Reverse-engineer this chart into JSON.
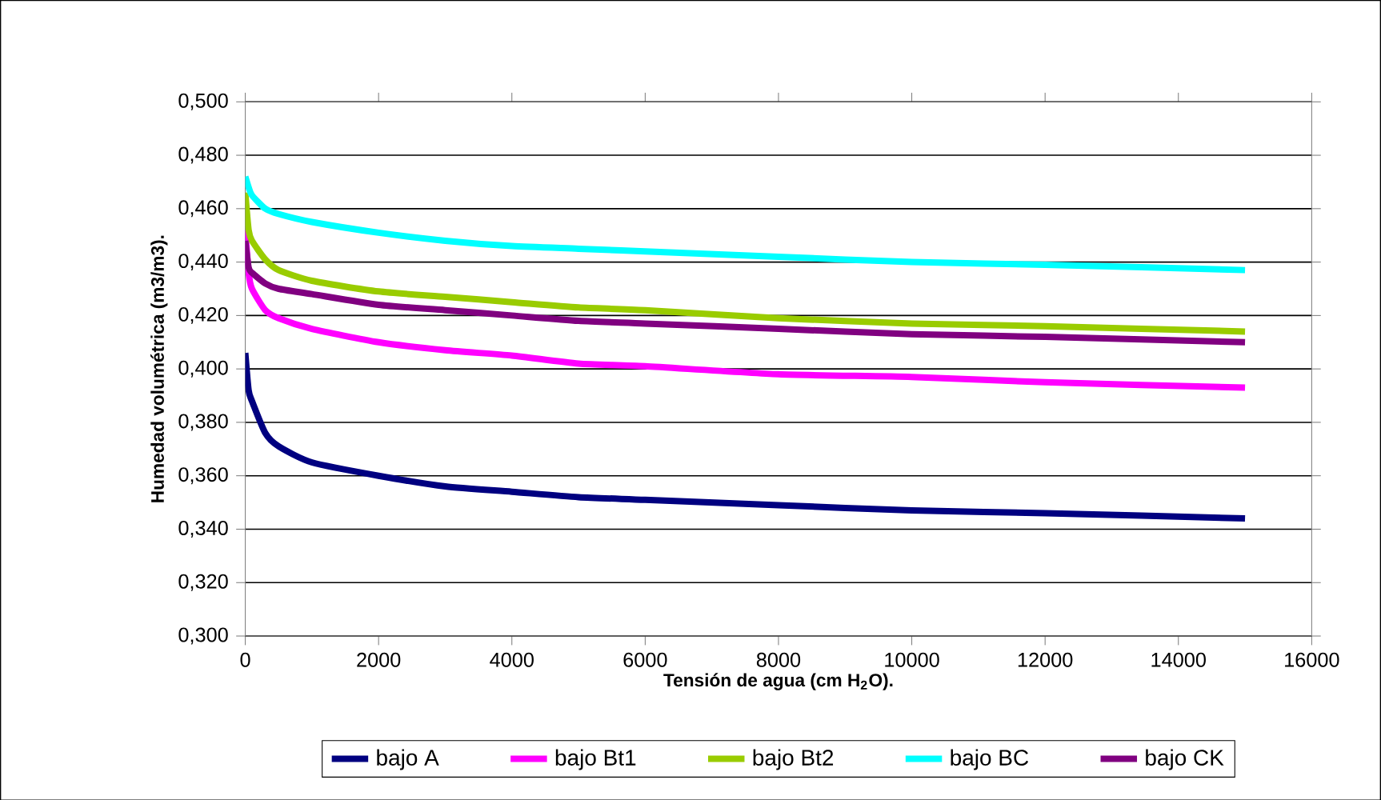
{
  "chart_data": {
    "type": "line",
    "xlabel": "Tensión de agua (cm H$_{2}$O).",
    "ylabel": "Humedad volumétrica (m3/m3).",
    "xlim": [
      0,
      16000
    ],
    "xticks": [
      0,
      2000,
      4000,
      6000,
      8000,
      10000,
      12000,
      14000,
      16000
    ],
    "ylim": [
      0.3,
      0.5
    ],
    "yticks": [
      {
        "value": 0.3,
        "label": "0,300"
      },
      {
        "value": 0.32,
        "label": "0,320"
      },
      {
        "value": 0.34,
        "label": "0,340"
      },
      {
        "value": 0.36,
        "label": "0,360"
      },
      {
        "value": 0.38,
        "label": "0,380"
      },
      {
        "value": 0.4,
        "label": "0,400"
      },
      {
        "value": 0.42,
        "label": "0,420"
      },
      {
        "value": 0.44,
        "label": "0,440"
      },
      {
        "value": 0.46,
        "label": "0,460"
      },
      {
        "value": 0.48,
        "label": "0,480"
      },
      {
        "value": 0.5,
        "label": "0,500"
      }
    ],
    "grid": "y",
    "legend": "bottom",
    "marker": "none",
    "line_style": "solid",
    "x": [
      0,
      50,
      100,
      300,
      500,
      1000,
      2000,
      3000,
      4000,
      5000,
      6000,
      8000,
      10000,
      12000,
      15000
    ],
    "series": [
      {
        "name": "bajo A",
        "color": "#000080",
        "values": [
          0.406,
          0.392,
          0.388,
          0.376,
          0.371,
          0.365,
          0.36,
          0.356,
          0.354,
          0.352,
          0.351,
          0.349,
          0.347,
          0.346,
          0.344
        ]
      },
      {
        "name": "bajo Bt1",
        "color": "#ff00ff",
        "values": [
          0.452,
          0.436,
          0.43,
          0.422,
          0.419,
          0.415,
          0.41,
          0.407,
          0.405,
          0.402,
          0.401,
          0.398,
          0.397,
          0.395,
          0.393
        ]
      },
      {
        "name": "bajo Bt2",
        "color": "#99cc00",
        "values": [
          0.466,
          0.452,
          0.448,
          0.441,
          0.437,
          0.433,
          0.429,
          0.427,
          0.425,
          0.423,
          0.422,
          0.419,
          0.417,
          0.416,
          0.414
        ]
      },
      {
        "name": "bajo BC",
        "color": "#00ffff",
        "values": [
          0.472,
          0.468,
          0.465,
          0.46,
          0.458,
          0.455,
          0.451,
          0.448,
          0.446,
          0.445,
          0.444,
          0.442,
          0.44,
          0.439,
          0.437
        ]
      },
      {
        "name": "bajo CK",
        "color": "#800080",
        "values": [
          0.448,
          0.438,
          0.436,
          0.432,
          0.43,
          0.428,
          0.424,
          0.422,
          0.42,
          0.418,
          0.417,
          0.415,
          0.413,
          0.412,
          0.41
        ]
      }
    ]
  }
}
